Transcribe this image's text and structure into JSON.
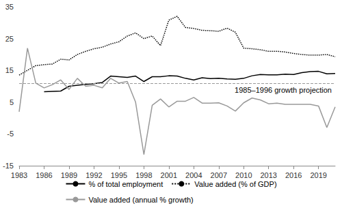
{
  "chart_data": {
    "type": "line",
    "x": [
      1983,
      1984,
      1985,
      1986,
      1987,
      1988,
      1989,
      1990,
      1991,
      1992,
      1993,
      1994,
      1995,
      1996,
      1997,
      1998,
      1999,
      2000,
      2001,
      2002,
      2003,
      2004,
      2005,
      2006,
      2007,
      2008,
      2009,
      2010,
      2011,
      2012,
      2013,
      2014,
      2015,
      2016,
      2017,
      2018,
      2019,
      2020,
      2021
    ],
    "series": [
      {
        "name": "% of total employment",
        "color": "#000000",
        "line_style": "solid",
        "values": [
          null,
          null,
          null,
          8.3,
          8.4,
          8.5,
          10.0,
          10.3,
          10.6,
          10.8,
          11.2,
          13.2,
          13.0,
          12.8,
          13.2,
          11.5,
          13.0,
          13.0,
          13.3,
          13.2,
          12.5,
          12.0,
          12.7,
          12.4,
          12.5,
          12.3,
          12.2,
          12.5,
          13.3,
          13.7,
          13.6,
          13.6,
          13.8,
          13.7,
          14.3,
          14.6,
          14.7,
          13.9,
          14.0
        ]
      },
      {
        "name": "Value added (% of GDP)",
        "color": "#000000",
        "line_style": "dotted",
        "values": [
          13.5,
          15.0,
          16.5,
          16.8,
          17.0,
          18.5,
          18.3,
          20.0,
          21.0,
          21.8,
          22.3,
          23.3,
          24.0,
          25.8,
          26.8,
          25.0,
          25.8,
          22.8,
          30.8,
          32.0,
          28.5,
          28.2,
          27.6,
          27.5,
          27.3,
          28.3,
          27.0,
          22.0,
          21.8,
          21.5,
          21.0,
          21.0,
          20.8,
          20.3,
          20.0,
          19.8,
          19.8,
          20.0,
          19.3
        ]
      },
      {
        "name": "Value added (annual % growth)",
        "color": "#999999",
        "line_style": "solid",
        "values": [
          2.0,
          22.0,
          11.0,
          9.5,
          10.5,
          12.0,
          9.0,
          12.5,
          10.0,
          10.3,
          9.5,
          12.5,
          11.0,
          11.5,
          5.0,
          -11.5,
          4.0,
          6.0,
          3.5,
          5.3,
          5.3,
          6.5,
          4.7,
          4.7,
          4.8,
          3.8,
          2.2,
          4.8,
          6.3,
          5.7,
          4.5,
          4.7,
          4.3,
          4.3,
          4.3,
          4.3,
          3.8,
          -3.0,
          3.5
        ]
      }
    ],
    "reference_lines": [
      {
        "value": 11,
        "label": "1985–1996 growth projection",
        "color": "#999999",
        "line_style": "dashed"
      }
    ],
    "xlim": [
      1983,
      2021
    ],
    "xticks": [
      1983,
      1986,
      1989,
      1992,
      1995,
      1998,
      2001,
      2004,
      2007,
      2010,
      2013,
      2016,
      2019
    ],
    "ylim": [
      -15,
      35
    ],
    "yticks": [
      -15,
      -5,
      5,
      15,
      25,
      35
    ],
    "grid": false,
    "legend": "bottom"
  }
}
